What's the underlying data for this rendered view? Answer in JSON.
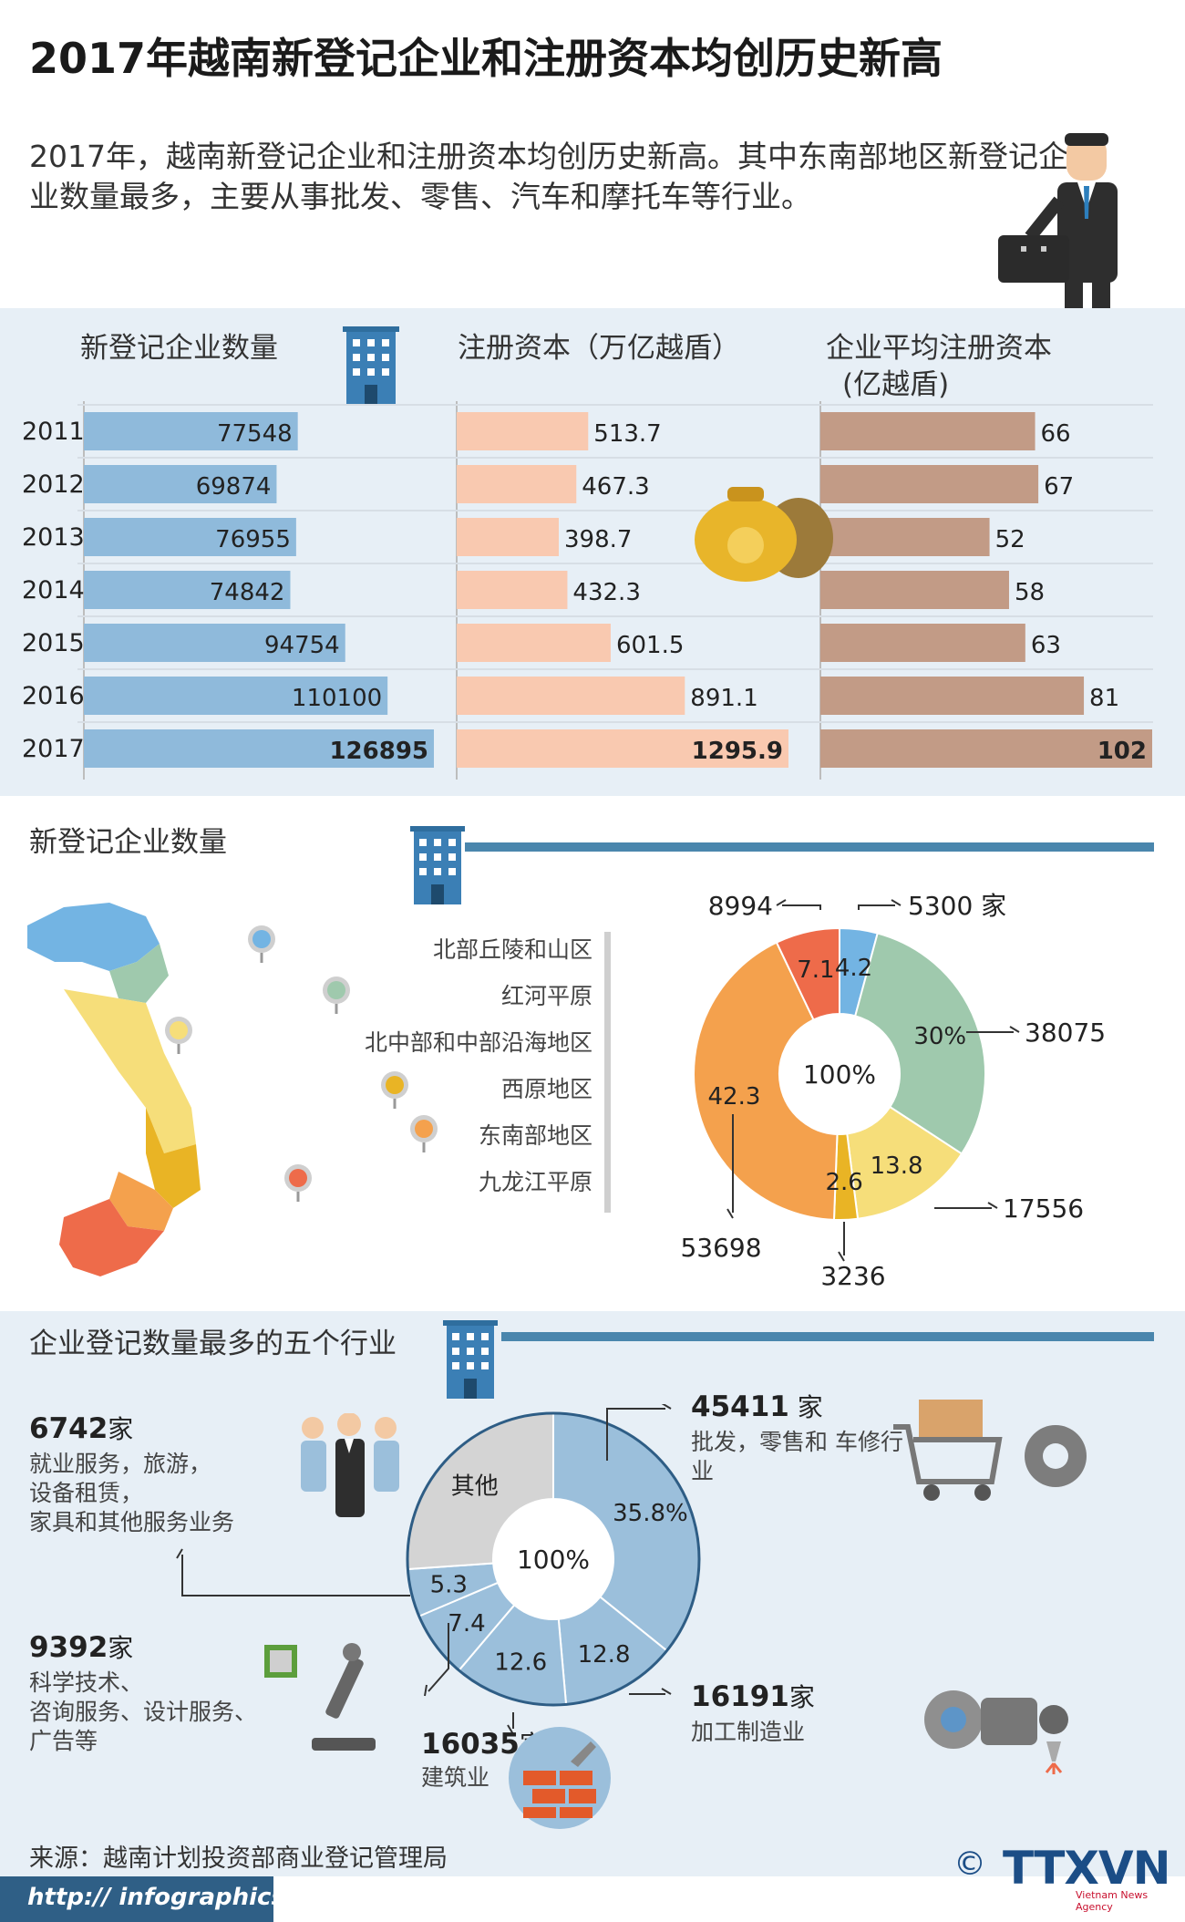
{
  "title": "2017年越南新登记企业和注册资本均创历史新高",
  "intro": "2017年，越南新登记企业和注册资本均创历史新高。其中东南部地区新登记企业数量最多，主要从事批发、零售、汽车和摩托车等行业。",
  "colors": {
    "bar_blue": "#8fbadb",
    "bar_pink": "#f9c9b0",
    "bar_brown": "#c29b86",
    "band": "#e7eff6",
    "rule": "#4a86ad"
  },
  "chart_data": [
    {
      "type": "bar",
      "orientation": "horizontal",
      "categories": [
        "2011",
        "2012",
        "2013",
        "2014",
        "2015",
        "2016",
        "2017"
      ],
      "series": [
        {
          "name": "新登记企业数量",
          "values": [
            77548,
            69874,
            76955,
            74842,
            94754,
            110100,
            126895
          ],
          "labels": [
            "77548",
            "69874",
            "76955",
            "74842",
            "94754",
            "110100",
            "126895"
          ]
        },
        {
          "name": "注册资本（万亿越盾）",
          "values": [
            513.7,
            467.3,
            398.7,
            432.3,
            601.5,
            891.1,
            1295.9
          ],
          "labels": [
            "513.7",
            "467.3",
            "398.7",
            "432.3",
            "601.5",
            "891.1",
            "1295.9"
          ]
        },
        {
          "name_lines": [
            "企业平均注册资本",
            "(亿越盾)"
          ],
          "values": [
            66,
            67,
            52,
            58,
            63,
            81,
            102
          ],
          "labels": [
            "66",
            "67",
            "52",
            "58",
            "63",
            "81",
            "102"
          ]
        }
      ]
    },
    {
      "type": "pie",
      "donut": true,
      "title": "新登记企业数量",
      "center_label": "100%",
      "slices": [
        {
          "name": "北部丘陵和山区",
          "percent": 4.2,
          "label": "4.2",
          "count": "5300 家",
          "color": "#73b4e3"
        },
        {
          "name": "红河平原",
          "percent": 30,
          "label": "30%",
          "count": "38075",
          "color": "#9fc9ad"
        },
        {
          "name": "北中部和中部沿海地区",
          "percent": 13.8,
          "label": "13.8",
          "count": "17556",
          "color": "#f6de7a"
        },
        {
          "name": "西原地区",
          "percent": 2.6,
          "label": "2.6",
          "count": "3236",
          "color": "#e9b425"
        },
        {
          "name": "东南部地区",
          "percent": 42.3,
          "label": "42.3",
          "count": "53698",
          "color": "#f4a14d"
        },
        {
          "name": "九龙江平原",
          "percent": 7.1,
          "label": "7.1",
          "count": "8994",
          "color": "#ee6b4a"
        }
      ]
    },
    {
      "type": "pie",
      "donut": true,
      "title": "企业登记数量最多的五个行业",
      "center_label": "100%",
      "slices": [
        {
          "percent": 35.8,
          "label": "35.8%",
          "color": "#9bbfdb"
        },
        {
          "percent": 12.8,
          "label": "12.8",
          "color": "#9bbfdb"
        },
        {
          "percent": 12.6,
          "label": "12.6",
          "color": "#9bbfdb"
        },
        {
          "percent": 7.4,
          "label": "7.4",
          "color": "#9bbfdb"
        },
        {
          "percent": 5.3,
          "label": "5.3",
          "color": "#9bbfdb"
        },
        {
          "percent": 26.1,
          "label": "其他",
          "color": "#d4d4d4"
        }
      ]
    }
  ],
  "industries": [
    {
      "num": "45411",
      "unit": " 家",
      "desc": "批发，零售和 车修行业"
    },
    {
      "num": "16191",
      "unit": "家",
      "desc": "加工制造业"
    },
    {
      "num": "16035",
      "unit": "家",
      "desc": "建筑业"
    },
    {
      "num": "9392",
      "unit": "家",
      "desc_lines": [
        "科学技术、",
        "咨询服务、设计服务、",
        "广告等"
      ]
    },
    {
      "num": "6742",
      "unit": "家",
      "desc_lines": [
        "就业服务，旅游，",
        "设备租赁，",
        "家具和其他服务业务"
      ]
    }
  ],
  "source": "来源：越南计划投资部商业登记管理局",
  "footer_url": "http:// infographics.vn",
  "logo": "TTXVN",
  "logo_sub": "Vietnam News Agency"
}
